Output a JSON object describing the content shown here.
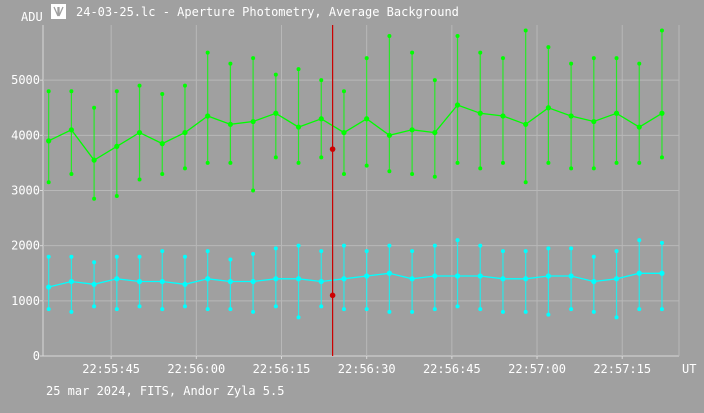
{
  "window": {
    "title": "24-03-25.lc - Aperture Photometry, Average Background",
    "icon": "app-logo-icon"
  },
  "footer": {
    "text": "25 mar 2024, FITS, Andor Zyla 5.5"
  },
  "colors": {
    "background": "#a0a0a0",
    "grid": "#b8b8b8",
    "axis": "#d8d8d8",
    "text": "#ffffff",
    "aperture_series": "#00ff00",
    "background_series": "#00ffff",
    "cursor": "#cc0000"
  },
  "chart_data": {
    "type": "line",
    "title": "24-03-25.lc - Aperture Photometry, Average Background",
    "ylabel": "ADU",
    "xlabel": "UT",
    "xlim": [
      "22:55:33",
      "22:57:25"
    ],
    "ylim": [
      0,
      6000
    ],
    "grid": true,
    "legend": "none",
    "x_ticks": [
      "22:55:45",
      "22:56:00",
      "22:56:15",
      "22:56:30",
      "22:56:45",
      "22:57:00",
      "22:57:15"
    ],
    "y_ticks": [
      0,
      1000,
      2000,
      3000,
      4000,
      5000
    ],
    "series": [
      {
        "color": "#00ff00",
        "x": [
          "22:55:34",
          "22:55:38",
          "22:55:42",
          "22:55:46",
          "22:55:50",
          "22:55:54",
          "22:55:58",
          "22:56:02",
          "22:56:06",
          "22:56:10",
          "22:56:14",
          "22:56:18",
          "22:56:22",
          "22:56:26",
          "22:56:30",
          "22:56:34",
          "22:56:38",
          "22:56:42",
          "22:56:46",
          "22:56:50",
          "22:56:54",
          "22:56:58",
          "22:57:02",
          "22:57:06",
          "22:57:10",
          "22:57:14",
          "22:57:18",
          "22:57:22"
        ],
        "y": [
          3900,
          4100,
          3550,
          3800,
          4050,
          3850,
          4050,
          4350,
          4200,
          4250,
          4400,
          4150,
          4300,
          4050,
          4300,
          4000,
          4100,
          4050,
          4550,
          4400,
          4350,
          4200,
          4500,
          4350,
          4250,
          4400,
          4150,
          4400
        ],
        "range_min": [
          3150,
          3300,
          2850,
          2900,
          3200,
          3300,
          3400,
          3500,
          3500,
          3000,
          3600,
          3500,
          3600,
          3300,
          3450,
          3350,
          3300,
          3250,
          3500,
          3400,
          3500,
          3150,
          3500,
          3400,
          3400,
          3500,
          3500,
          3600
        ],
        "range_max": [
          4800,
          4800,
          4500,
          4800,
          4900,
          4750,
          4900,
          5500,
          5300,
          5400,
          5100,
          5200,
          5000,
          4800,
          5400,
          5800,
          5500,
          5000,
          5800,
          5500,
          5400,
          5900,
          5600,
          5300,
          5400,
          5400,
          5300,
          5900
        ]
      },
      {
        "color": "#00ffff",
        "x": [
          "22:55:34",
          "22:55:38",
          "22:55:42",
          "22:55:46",
          "22:55:50",
          "22:55:54",
          "22:55:58",
          "22:56:02",
          "22:56:06",
          "22:56:10",
          "22:56:14",
          "22:56:18",
          "22:56:22",
          "22:56:26",
          "22:56:30",
          "22:56:34",
          "22:56:38",
          "22:56:42",
          "22:56:46",
          "22:56:50",
          "22:56:54",
          "22:56:58",
          "22:57:02",
          "22:57:06",
          "22:57:10",
          "22:57:14",
          "22:57:18",
          "22:57:22"
        ],
        "y": [
          1250,
          1350,
          1300,
          1400,
          1350,
          1350,
          1300,
          1400,
          1350,
          1350,
          1400,
          1400,
          1350,
          1400,
          1450,
          1500,
          1400,
          1450,
          1450,
          1450,
          1400,
          1400,
          1450,
          1450,
          1350,
          1400,
          1500,
          1500
        ],
        "range_min": [
          850,
          800,
          900,
          850,
          900,
          850,
          900,
          850,
          850,
          800,
          900,
          700,
          900,
          850,
          850,
          800,
          800,
          850,
          900,
          850,
          800,
          800,
          750,
          850,
          800,
          700,
          850,
          850
        ],
        "range_max": [
          1800,
          1800,
          1700,
          1800,
          1800,
          1900,
          1800,
          1900,
          1750,
          1850,
          1950,
          2000,
          1900,
          2000,
          1900,
          2000,
          1900,
          2000,
          2100,
          2000,
          1900,
          1900,
          1950,
          1950,
          1800,
          1900,
          2100,
          2050
        ]
      }
    ],
    "cursor": {
      "x": "22:56:24",
      "values": [
        3750,
        1100
      ],
      "color": "#cc0000"
    }
  }
}
